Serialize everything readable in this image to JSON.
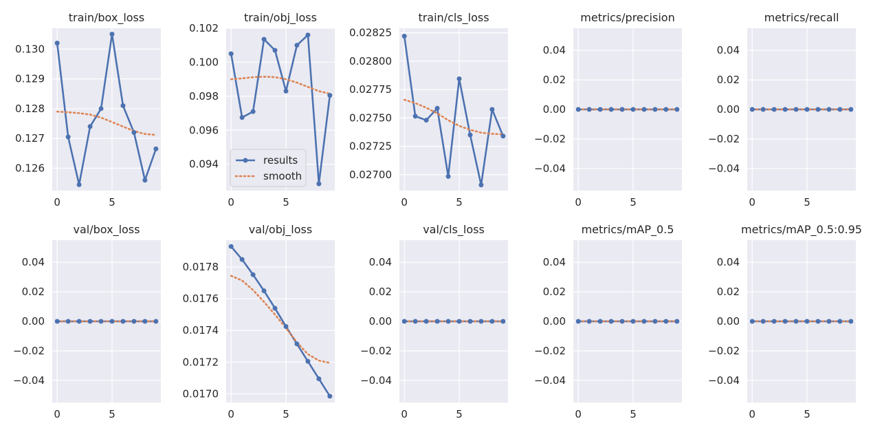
{
  "figure": {
    "legend": {
      "results": "results",
      "smooth": "smooth"
    },
    "colors": {
      "background": "#ffffff",
      "panel": "#eaeaf2",
      "grid": "#ffffff",
      "results": "#4c72b0",
      "smooth": "#dd8452",
      "text": "#262626"
    }
  },
  "chart_data": [
    {
      "type": "line",
      "title": "train/box_loss",
      "x": [
        0,
        1,
        2,
        3,
        4,
        5,
        6,
        7,
        8,
        9
      ],
      "series": [
        {
          "name": "results",
          "values": [
            0.1302,
            0.12705,
            0.12545,
            0.1274,
            0.128,
            0.1305,
            0.1281,
            0.1272,
            0.1256,
            0.12665
          ]
        },
        {
          "name": "smooth",
          "values": [
            0.1279,
            0.12788,
            0.12785,
            0.1278,
            0.1277,
            0.12755,
            0.1274,
            0.12725,
            0.12715,
            0.12712
          ]
        }
      ],
      "xlim": [
        -0.45,
        9.45
      ],
      "ylim": [
        0.12525,
        0.1307
      ],
      "xticks": [
        0,
        5
      ],
      "xtick_labels": [
        "0",
        "5"
      ],
      "yticks": [
        0.126,
        0.127,
        0.128,
        0.129,
        0.13
      ],
      "ytick_labels": [
        "0.126",
        "0.127",
        "0.128",
        "0.129",
        "0.130"
      ],
      "grid": true,
      "legend": "none"
    },
    {
      "type": "line",
      "title": "train/obj_loss",
      "x": [
        0,
        1,
        2,
        3,
        4,
        5,
        6,
        7,
        8,
        9
      ],
      "series": [
        {
          "name": "results",
          "values": [
            0.1005,
            0.09675,
            0.0971,
            0.10135,
            0.1007,
            0.0983,
            0.101,
            0.1016,
            0.09285,
            0.09805
          ]
        },
        {
          "name": "smooth",
          "values": [
            0.099,
            0.09905,
            0.09912,
            0.09915,
            0.09912,
            0.099,
            0.0988,
            0.09855,
            0.0983,
            0.09815
          ]
        }
      ],
      "xlim": [
        -0.45,
        9.45
      ],
      "ylim": [
        0.09245,
        0.102
      ],
      "xticks": [
        0,
        5
      ],
      "xtick_labels": [
        "0",
        "5"
      ],
      "yticks": [
        0.094,
        0.096,
        0.098,
        0.1,
        0.102
      ],
      "ytick_labels": [
        "0.094",
        "0.096",
        "0.098",
        "0.100",
        "0.102"
      ],
      "grid": true,
      "legend": "lower left"
    },
    {
      "type": "line",
      "title": "train/cls_loss",
      "x": [
        0,
        1,
        2,
        3,
        4,
        5,
        6,
        7,
        8,
        9
      ],
      "series": [
        {
          "name": "results",
          "values": [
            0.02822,
            0.027515,
            0.02748,
            0.027585,
            0.026985,
            0.027845,
            0.02735,
            0.02691,
            0.027575,
            0.02734
          ]
        },
        {
          "name": "smooth",
          "values": [
            0.02766,
            0.02763,
            0.02759,
            0.02754,
            0.02748,
            0.02743,
            0.027395,
            0.02737,
            0.02736,
            0.027355
          ]
        }
      ],
      "xlim": [
        -0.45,
        9.45
      ],
      "ylim": [
        0.02686,
        0.02829
      ],
      "xticks": [
        0,
        5
      ],
      "xtick_labels": [
        "0",
        "5"
      ],
      "yticks": [
        0.027,
        0.02725,
        0.0275,
        0.02775,
        0.028,
        0.02825
      ],
      "ytick_labels": [
        "0.02700",
        "0.02725",
        "0.02750",
        "0.02775",
        "0.02800",
        "0.02825"
      ],
      "grid": true,
      "legend": "none"
    },
    {
      "type": "line",
      "title": "metrics/precision",
      "x": [
        0,
        1,
        2,
        3,
        4,
        5,
        6,
        7,
        8,
        9
      ],
      "series": [
        {
          "name": "results",
          "values": [
            0,
            0,
            0,
            0,
            0,
            0,
            0,
            0,
            0,
            0
          ]
        },
        {
          "name": "smooth",
          "values": [
            0,
            0,
            0,
            0,
            0,
            0,
            0,
            0,
            0,
            0
          ]
        }
      ],
      "xlim": [
        -0.45,
        9.45
      ],
      "ylim": [
        -0.055,
        0.055
      ],
      "xticks": [
        0,
        5
      ],
      "xtick_labels": [
        "0",
        "5"
      ],
      "yticks": [
        -0.04,
        -0.02,
        0,
        0.02,
        0.04
      ],
      "ytick_labels": [
        "−0.04",
        "−0.02",
        "0.00",
        "0.02",
        "0.04"
      ],
      "grid": true,
      "legend": "none"
    },
    {
      "type": "line",
      "title": "metrics/recall",
      "x": [
        0,
        1,
        2,
        3,
        4,
        5,
        6,
        7,
        8,
        9
      ],
      "series": [
        {
          "name": "results",
          "values": [
            0,
            0,
            0,
            0,
            0,
            0,
            0,
            0,
            0,
            0
          ]
        },
        {
          "name": "smooth",
          "values": [
            0,
            0,
            0,
            0,
            0,
            0,
            0,
            0,
            0,
            0
          ]
        }
      ],
      "xlim": [
        -0.45,
        9.45
      ],
      "ylim": [
        -0.055,
        0.055
      ],
      "xticks": [
        0,
        5
      ],
      "xtick_labels": [
        "0",
        "5"
      ],
      "yticks": [
        -0.04,
        -0.02,
        0,
        0.02,
        0.04
      ],
      "ytick_labels": [
        "−0.04",
        "−0.02",
        "0.00",
        "0.02",
        "0.04"
      ],
      "grid": true,
      "legend": "none"
    },
    {
      "type": "line",
      "title": "val/box_loss",
      "x": [
        0,
        1,
        2,
        3,
        4,
        5,
        6,
        7,
        8,
        9
      ],
      "series": [
        {
          "name": "results",
          "values": [
            0,
            0,
            0,
            0,
            0,
            0,
            0,
            0,
            0,
            0
          ]
        },
        {
          "name": "smooth",
          "values": [
            0,
            0,
            0,
            0,
            0,
            0,
            0,
            0,
            0,
            0
          ]
        }
      ],
      "xlim": [
        -0.45,
        9.45
      ],
      "ylim": [
        -0.055,
        0.055
      ],
      "xticks": [
        0,
        5
      ],
      "xtick_labels": [
        "0",
        "5"
      ],
      "yticks": [
        -0.04,
        -0.02,
        0,
        0.02,
        0.04
      ],
      "ytick_labels": [
        "−0.04",
        "−0.02",
        "0.00",
        "0.02",
        "0.04"
      ],
      "grid": true,
      "legend": "none"
    },
    {
      "type": "line",
      "title": "val/obj_loss",
      "x": [
        0,
        1,
        2,
        3,
        4,
        5,
        6,
        7,
        8,
        9
      ],
      "series": [
        {
          "name": "results",
          "values": [
            0.01793,
            0.017848,
            0.017752,
            0.01765,
            0.01754,
            0.017425,
            0.017315,
            0.017205,
            0.017095,
            0.016985
          ]
        },
        {
          "name": "smooth",
          "values": [
            0.017745,
            0.017715,
            0.017655,
            0.01758,
            0.0175,
            0.017415,
            0.017325,
            0.01725,
            0.01721,
            0.017195
          ]
        }
      ],
      "xlim": [
        -0.45,
        9.45
      ],
      "ylim": [
        0.016945,
        0.01797
      ],
      "xticks": [
        0,
        5
      ],
      "xtick_labels": [
        "0",
        "5"
      ],
      "yticks": [
        0.017,
        0.0172,
        0.0174,
        0.0176,
        0.0178
      ],
      "ytick_labels": [
        "0.0170",
        "0.0172",
        "0.0174",
        "0.0176",
        "0.0178"
      ],
      "grid": true,
      "legend": "none"
    },
    {
      "type": "line",
      "title": "val/cls_loss",
      "x": [
        0,
        1,
        2,
        3,
        4,
        5,
        6,
        7,
        8,
        9
      ],
      "series": [
        {
          "name": "results",
          "values": [
            0,
            0,
            0,
            0,
            0,
            0,
            0,
            0,
            0,
            0
          ]
        },
        {
          "name": "smooth",
          "values": [
            0,
            0,
            0,
            0,
            0,
            0,
            0,
            0,
            0,
            0
          ]
        }
      ],
      "xlim": [
        -0.45,
        9.45
      ],
      "ylim": [
        -0.055,
        0.055
      ],
      "xticks": [
        0,
        5
      ],
      "xtick_labels": [
        "0",
        "5"
      ],
      "yticks": [
        -0.04,
        -0.02,
        0,
        0.02,
        0.04
      ],
      "ytick_labels": [
        "−0.04",
        "−0.02",
        "0.00",
        "0.02",
        "0.04"
      ],
      "grid": true,
      "legend": "none"
    },
    {
      "type": "line",
      "title": "metrics/mAP_0.5",
      "x": [
        0,
        1,
        2,
        3,
        4,
        5,
        6,
        7,
        8,
        9
      ],
      "series": [
        {
          "name": "results",
          "values": [
            0,
            0,
            0,
            0,
            0,
            0,
            0,
            0,
            0,
            0
          ]
        },
        {
          "name": "smooth",
          "values": [
            0,
            0,
            0,
            0,
            0,
            0,
            0,
            0,
            0,
            0
          ]
        }
      ],
      "xlim": [
        -0.45,
        9.45
      ],
      "ylim": [
        -0.055,
        0.055
      ],
      "xticks": [
        0,
        5
      ],
      "xtick_labels": [
        "0",
        "5"
      ],
      "yticks": [
        -0.04,
        -0.02,
        0,
        0.02,
        0.04
      ],
      "ytick_labels": [
        "−0.04",
        "−0.02",
        "0.00",
        "0.02",
        "0.04"
      ],
      "grid": true,
      "legend": "none"
    },
    {
      "type": "line",
      "title": "metrics/mAP_0.5:0.95",
      "x": [
        0,
        1,
        2,
        3,
        4,
        5,
        6,
        7,
        8,
        9
      ],
      "series": [
        {
          "name": "results",
          "values": [
            0,
            0,
            0,
            0,
            0,
            0,
            0,
            0,
            0,
            0
          ]
        },
        {
          "name": "smooth",
          "values": [
            0,
            0,
            0,
            0,
            0,
            0,
            0,
            0,
            0,
            0
          ]
        }
      ],
      "xlim": [
        -0.45,
        9.45
      ],
      "ylim": [
        -0.055,
        0.055
      ],
      "xticks": [
        0,
        5
      ],
      "xtick_labels": [
        "0",
        "5"
      ],
      "yticks": [
        -0.04,
        -0.02,
        0,
        0.02,
        0.04
      ],
      "ytick_labels": [
        "−0.04",
        "−0.02",
        "0.00",
        "0.02",
        "0.04"
      ],
      "grid": true,
      "legend": "none"
    }
  ]
}
